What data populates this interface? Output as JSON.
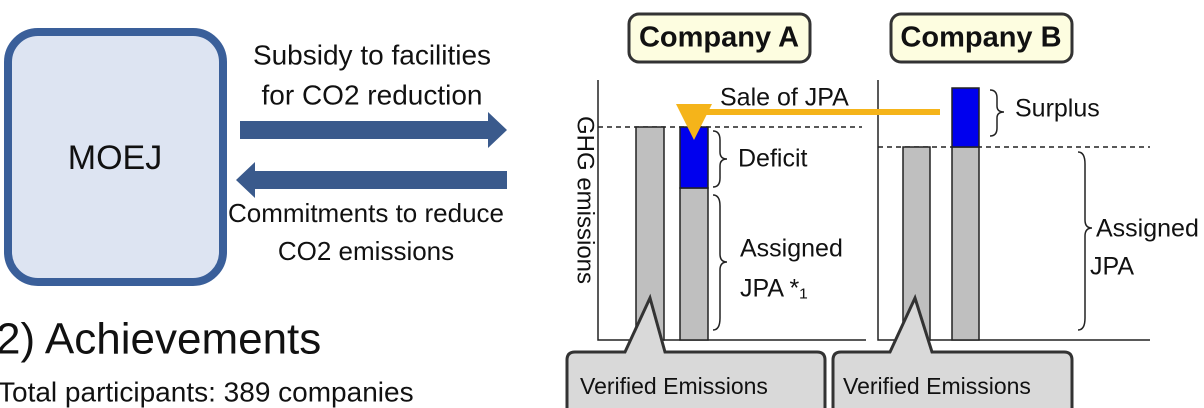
{
  "left": {
    "moej": "MOEJ",
    "subsidy": [
      "Subsidy to facilities",
      "for  CO2 reduction"
    ],
    "commitments": [
      "Commitments to reduce",
      "CO2 emissions"
    ]
  },
  "achievements": {
    "heading": "2) Achievements",
    "participants": "Total participants: 389 companies"
  },
  "diagram": {
    "company_a": "Company A",
    "company_b": "Company B",
    "y_axis": "GHG emissions",
    "sale": "Sale of JPA",
    "deficit": "Deficit",
    "assigned_a": [
      "Assigned",
      "JPA *₁"
    ],
    "surplus": "Surplus",
    "assigned_b": [
      "Assigned",
      "JPA"
    ],
    "verified": [
      "Verified Emissions",
      "Verified Emissions"
    ]
  }
}
